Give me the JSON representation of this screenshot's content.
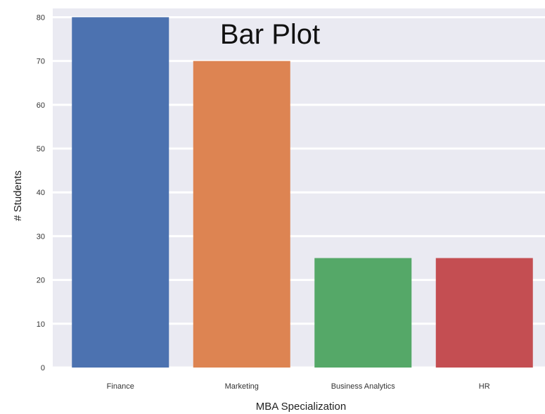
{
  "chart_data": {
    "type": "bar",
    "title": "Bar Plot",
    "xlabel": "MBA Specialization",
    "ylabel": "# Students",
    "categories": [
      "Finance",
      "Marketing",
      "Business Analytics",
      "HR"
    ],
    "values": [
      80,
      70,
      25,
      25
    ],
    "ylim": [
      0,
      82
    ],
    "yticks": [
      0,
      10,
      20,
      30,
      40,
      50,
      60,
      70,
      80
    ],
    "colors": [
      "#4c72b0",
      "#dd8452",
      "#55a868",
      "#c44e52"
    ],
    "grid": true,
    "background": "#eaeaf2"
  }
}
